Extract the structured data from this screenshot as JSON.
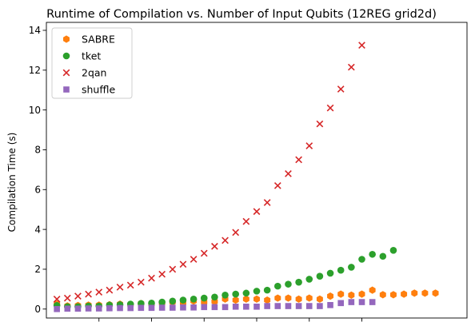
{
  "chart_data": {
    "type": "scatter",
    "title": "Runtime of Compilation vs. Number of Input Qubits (12REG grid2d)",
    "xlabel": "",
    "ylabel": "Compilation Time (s)",
    "xlim": [
      0,
      40
    ],
    "ylim": [
      -0.45,
      14.4
    ],
    "yticks": [
      0,
      2,
      4,
      6,
      8,
      10,
      12,
      14
    ],
    "xticks": [
      5,
      10,
      15,
      20,
      25,
      30
    ],
    "xtick_labels_visible": false,
    "grid": false,
    "legend_position": "top-left",
    "x": [
      1,
      2,
      3,
      4,
      5,
      6,
      7,
      8,
      9,
      10,
      11,
      12,
      13,
      14,
      15,
      16,
      17,
      18,
      19,
      20,
      21,
      22,
      23,
      24,
      25,
      26,
      27,
      28,
      29,
      30,
      31,
      32,
      33,
      34,
      35,
      36,
      37
    ],
    "series": [
      {
        "name": "SABRE",
        "color": "#ff7f0e",
        "marker": "hexagon",
        "values": [
          0.25,
          0.16,
          0.18,
          0.2,
          0.2,
          0.22,
          0.25,
          0.22,
          0.28,
          0.25,
          0.3,
          0.35,
          0.3,
          0.4,
          0.35,
          0.38,
          0.5,
          0.45,
          0.5,
          0.5,
          0.45,
          0.55,
          0.55,
          0.5,
          0.55,
          0.5,
          0.65,
          0.75,
          0.7,
          0.75,
          0.95,
          0.72,
          0.72,
          0.75,
          0.8,
          0.8,
          0.8
        ]
      },
      {
        "name": "tket",
        "color": "#2ca02c",
        "marker": "circle",
        "values": [
          0.18,
          0.12,
          0.12,
          0.15,
          0.15,
          0.2,
          0.22,
          0.25,
          0.28,
          0.3,
          0.35,
          0.4,
          0.45,
          0.5,
          0.55,
          0.6,
          0.7,
          0.75,
          0.8,
          0.9,
          0.95,
          1.15,
          1.25,
          1.35,
          1.5,
          1.65,
          1.8,
          1.95,
          2.1,
          2.5,
          2.75,
          2.65,
          2.95
        ]
      },
      {
        "name": "2qan",
        "color": "#d62728",
        "marker": "x",
        "values": [
          0.5,
          0.55,
          0.65,
          0.75,
          0.85,
          0.95,
          1.1,
          1.2,
          1.35,
          1.55,
          1.75,
          2.0,
          2.25,
          2.5,
          2.8,
          3.15,
          3.45,
          3.85,
          4.4,
          4.9,
          5.35,
          6.2,
          6.8,
          7.5,
          8.2,
          9.3,
          10.1,
          11.05,
          12.15,
          13.25
        ]
      },
      {
        "name": "shuffle",
        "color": "#9467bd",
        "marker": "square",
        "values": [
          0.0,
          0.02,
          0.02,
          0.03,
          0.03,
          0.04,
          0.05,
          0.05,
          0.06,
          0.06,
          0.07,
          0.07,
          0.08,
          0.08,
          0.1,
          0.1,
          0.1,
          0.12,
          0.12,
          0.12,
          0.15,
          0.15,
          0.15,
          0.15,
          0.15,
          0.15,
          0.2,
          0.3,
          0.35,
          0.35,
          0.35
        ]
      }
    ],
    "legend_entries": [
      "SABRE",
      "tket",
      "2qan",
      "shuffle"
    ]
  }
}
